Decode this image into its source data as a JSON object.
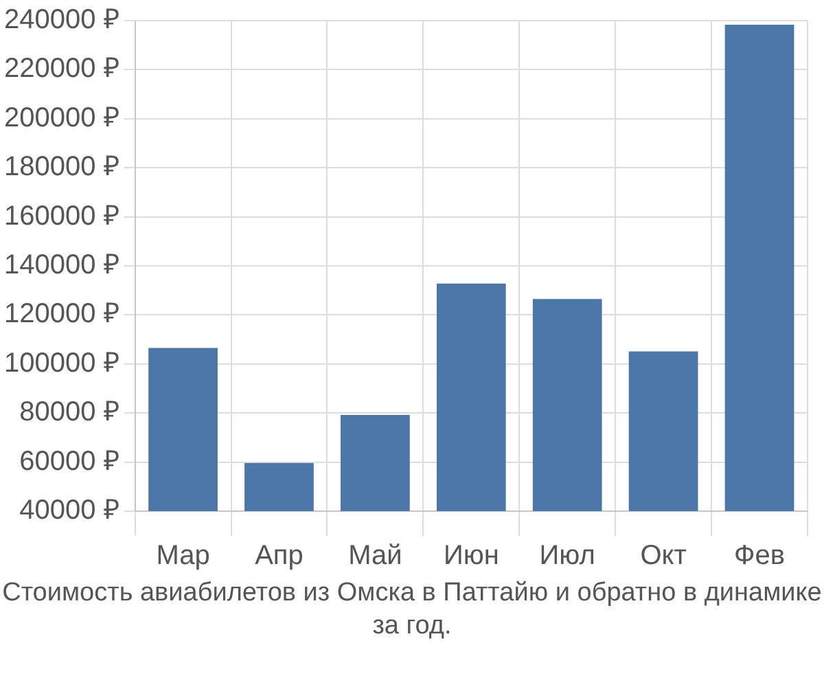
{
  "chart_data": {
    "type": "bar",
    "title": "Стоимость авиабилетов из Омска в Паттайю и обратно в динамике за год.",
    "categories": [
      "Мар",
      "Апр",
      "Май",
      "Июн",
      "Июл",
      "Окт",
      "Фев"
    ],
    "values": [
      106500,
      59600,
      79200,
      132800,
      126500,
      105100,
      238300
    ],
    "color": "#4a76a8",
    "ylim": [
      40000,
      240000
    ],
    "yticks": [
      {
        "value": 40000,
        "label": "40000 ₽"
      },
      {
        "value": 60000,
        "label": "60000 ₽"
      },
      {
        "value": 80000,
        "label": "80000 ₽"
      },
      {
        "value": 100000,
        "label": "100000 ₽"
      },
      {
        "value": 120000,
        "label": "120000 ₽"
      },
      {
        "value": 140000,
        "label": "140000 ₽"
      },
      {
        "value": 160000,
        "label": "160000 ₽"
      },
      {
        "value": 180000,
        "label": "180000 ₽"
      },
      {
        "value": 200000,
        "label": "200000 ₽"
      },
      {
        "value": 220000,
        "label": "220000 ₽"
      },
      {
        "value": 240000,
        "label": "240000 ₽"
      }
    ],
    "grid": true
  }
}
